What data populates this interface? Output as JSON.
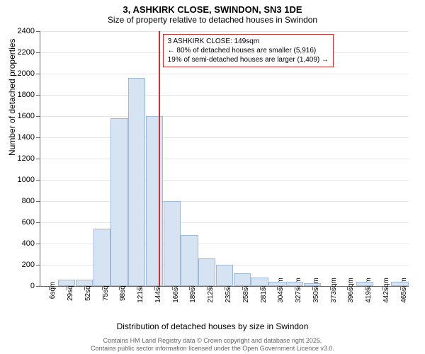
{
  "title": "3, ASHKIRK CLOSE, SWINDON, SN3 1DE",
  "subtitle": "Size of property relative to detached houses in Swindon",
  "ylabel": "Number of detached properties",
  "xlabel": "Distribution of detached houses by size in Swindon",
  "chart": {
    "type": "histogram",
    "ylim": [
      0,
      2400
    ],
    "ytick_step": 200,
    "bar_fill": "#d6e3f3",
    "bar_stroke": "#9db8d9",
    "grid_color": "#e5e5e5",
    "vline_color": "#cc3333",
    "vline_x": 149,
    "background_color": "#ffffff",
    "title_fontsize": 13,
    "label_fontsize": 12,
    "tick_fontsize": 10,
    "x_categories": [
      "6sqm",
      "29sqm",
      "52sqm",
      "75sqm",
      "98sqm",
      "121sqm",
      "144sqm",
      "166sqm",
      "189sqm",
      "212sqm",
      "235sqm",
      "258sqm",
      "281sqm",
      "304sqm",
      "327sqm",
      "350sqm",
      "373sqm",
      "396sqm",
      "419sqm",
      "442sqm",
      "465sqm"
    ],
    "values": [
      0,
      60,
      60,
      540,
      1580,
      1960,
      1600,
      800,
      480,
      260,
      200,
      120,
      80,
      40,
      40,
      30,
      0,
      0,
      40,
      0,
      40
    ]
  },
  "annotation": {
    "line1": "3 ASHKIRK CLOSE: 149sqm",
    "line2": "← 80% of detached houses are smaller (5,916)",
    "line3": "19% of semi-detached houses are larger (1,409) →"
  },
  "footer": {
    "line1": "Contains HM Land Registry data © Crown copyright and database right 2025.",
    "line2": "Contains public sector information licensed under the Open Government Licence v3.0."
  }
}
